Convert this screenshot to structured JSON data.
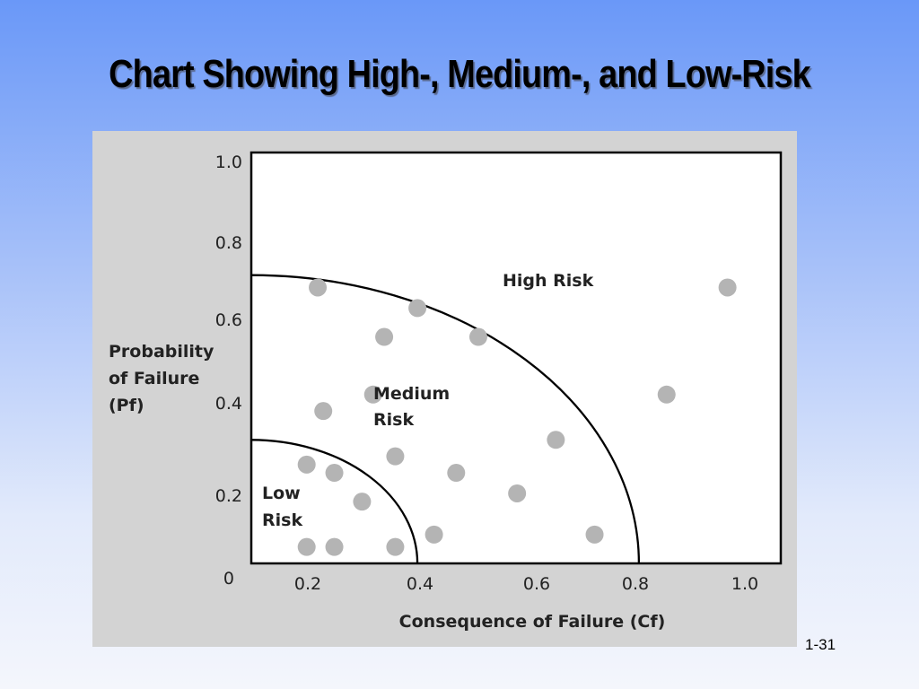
{
  "slide": {
    "title": "Chart Showing High-, Medium-, and Low-Risk",
    "page_number": "1-31"
  },
  "colors": {
    "background_top": "#6a98f8",
    "background_bottom": "#f4f6fc",
    "panel": "#d3d3d3",
    "plot_area": "#ffffff",
    "points": "#b4b4b4"
  },
  "chart_data": {
    "type": "scatter",
    "xlabel": "Consequence of Failure (Cf)",
    "ylabel_lines": [
      "Probability",
      "of Failure",
      "(Pf)"
    ],
    "x_ticks": [
      "0.2",
      "0.4",
      "0.6",
      "0.8",
      "1.0"
    ],
    "y_ticks": [
      "1.0",
      "0.8",
      "0.6",
      "0.4",
      "0.2"
    ],
    "origin_label": "0",
    "grid": false,
    "regions": [
      {
        "name": "Low Risk",
        "label_lines": [
          "Low",
          "Risk"
        ],
        "boundary_radius": 0.3
      },
      {
        "name": "Medium Risk",
        "label_lines": [
          "Medium",
          "Risk"
        ],
        "boundary_radius": 0.7
      },
      {
        "name": "High Risk",
        "label_lines": [
          "High Risk"
        ]
      }
    ],
    "points": [
      {
        "x": 0.12,
        "y": 0.67
      },
      {
        "x": 0.3,
        "y": 0.62
      },
      {
        "x": 0.24,
        "y": 0.55
      },
      {
        "x": 0.41,
        "y": 0.55
      },
      {
        "x": 0.22,
        "y": 0.41
      },
      {
        "x": 0.13,
        "y": 0.37
      },
      {
        "x": 0.26,
        "y": 0.26
      },
      {
        "x": 0.55,
        "y": 0.3
      },
      {
        "x": 0.1,
        "y": 0.24
      },
      {
        "x": 0.15,
        "y": 0.22
      },
      {
        "x": 0.37,
        "y": 0.22
      },
      {
        "x": 0.48,
        "y": 0.17
      },
      {
        "x": 0.2,
        "y": 0.15
      },
      {
        "x": 0.33,
        "y": 0.07
      },
      {
        "x": 0.62,
        "y": 0.07
      },
      {
        "x": 0.1,
        "y": 0.04
      },
      {
        "x": 0.15,
        "y": 0.04
      },
      {
        "x": 0.26,
        "y": 0.04
      },
      {
        "x": 0.75,
        "y": 0.41
      },
      {
        "x": 0.86,
        "y": 0.67
      }
    ]
  }
}
